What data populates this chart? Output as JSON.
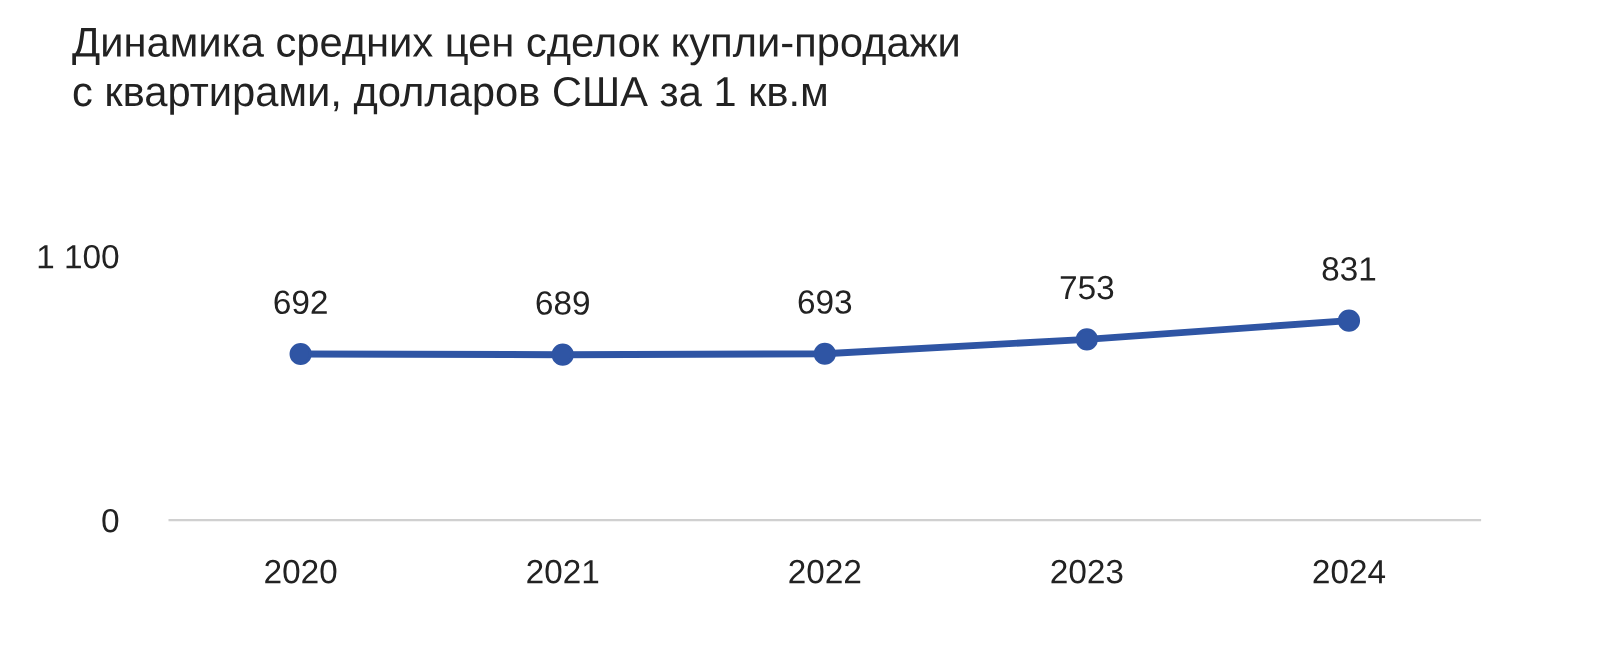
{
  "chart_data": {
    "type": "line",
    "title": "Динамика средних цен сделок купли-продажи\nс квартирами, долларов США за 1 кв.м",
    "categories": [
      "2020",
      "2021",
      "2022",
      "2023",
      "2024"
    ],
    "series": [
      {
        "color": "#2f55a4",
        "values": [
          692,
          689,
          693,
          753,
          831
        ]
      }
    ],
    "ylim": [
      0,
      1100
    ],
    "yticks": [
      0,
      {
        "value": 1100,
        "label": "1 100"
      }
    ],
    "data_labels": true,
    "marker": "circle",
    "line_style": "solid",
    "grid": false,
    "legend": false
  }
}
